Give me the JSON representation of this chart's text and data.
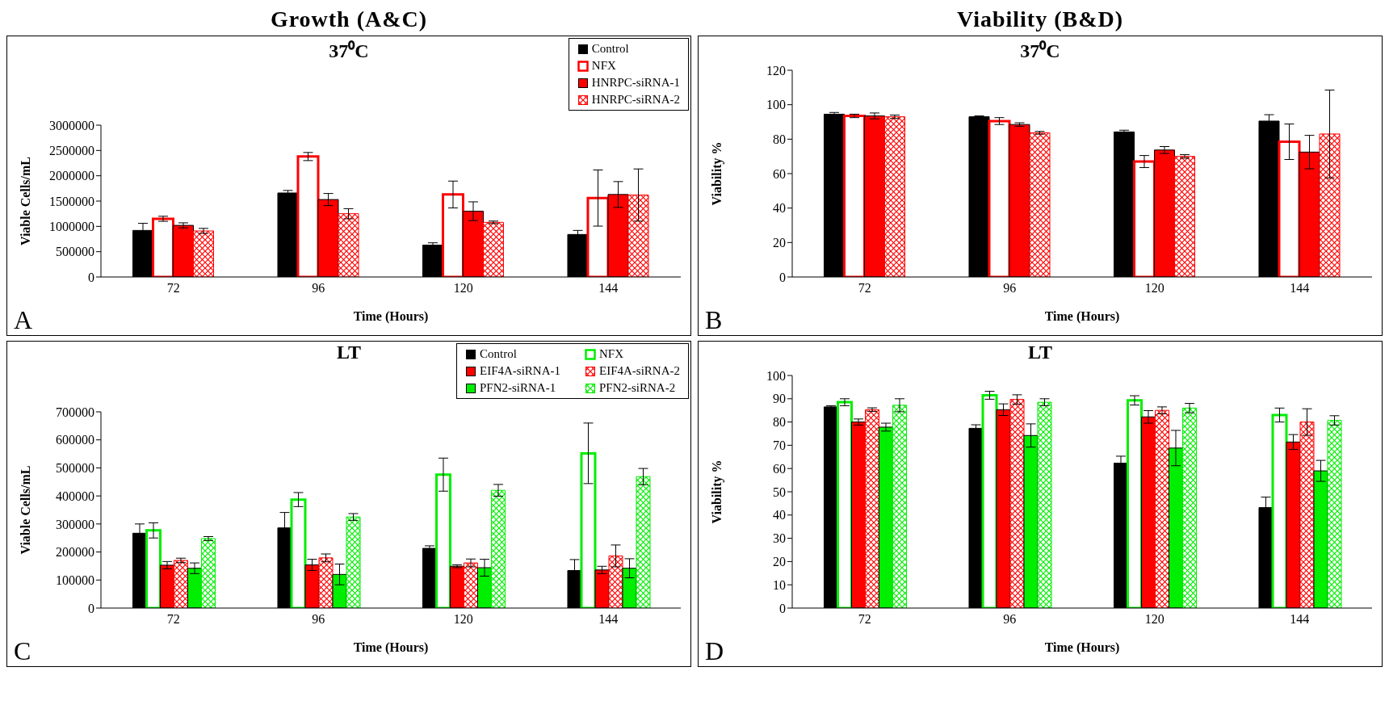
{
  "chart_data": [
    {
      "type": "bar",
      "title": "Growth (A&C)",
      "subtitle": "37⁰C",
      "xlabel": "Time (Hours)",
      "ylabel": "Viable Cells/mL",
      "categories": [
        "72",
        "96",
        "120",
        "144"
      ],
      "ylim": [
        0,
        3000000
      ],
      "yticks": [
        0,
        500000,
        1000000,
        1500000,
        2000000,
        2500000,
        3000000
      ],
      "legend": "top right",
      "annotations": [
        "A"
      ],
      "series": [
        {
          "name": "Control",
          "color": "#000000",
          "values": [
            920000,
            1660000,
            630000,
            840000
          ],
          "errors": [
            140000,
            50000,
            45000,
            80000
          ]
        },
        {
          "name": "NFX",
          "color": "#ff0000",
          "values": [
            1150000,
            2380000,
            1630000,
            1560000
          ],
          "errors": [
            50000,
            80000,
            265000,
            555000
          ]
        },
        {
          "name": "HNRPC-siRNA-1",
          "color": "#ff0000",
          "values": [
            1020000,
            1530000,
            1300000,
            1630000
          ],
          "errors": [
            50000,
            120000,
            185000,
            255000
          ]
        },
        {
          "name": "HNRPC-siRNA-2",
          "color": "#ff0000",
          "values": [
            910000,
            1250000,
            1080000,
            1620000
          ],
          "errors": [
            50000,
            100000,
            25000,
            515000
          ]
        }
      ]
    },
    {
      "type": "bar",
      "title": "Viability (B&D)",
      "subtitle": "37⁰C",
      "xlabel": "Time (Hours)",
      "ylabel": "Viability %",
      "categories": [
        "72",
        "96",
        "120",
        "144"
      ],
      "ylim": [
        0,
        120
      ],
      "yticks": [
        0,
        20,
        40,
        60,
        80,
        100,
        120
      ],
      "annotations": [
        "B"
      ],
      "series": [
        {
          "color": "#000000",
          "values": [
            94.5,
            93,
            84.2,
            90.5
          ],
          "errors": [
            1,
            0.5,
            1,
            3.7
          ]
        },
        {
          "color": "#ff0000",
          "values": [
            93.5,
            90.5,
            67,
            78.5
          ],
          "errors": [
            1,
            2,
            3.5,
            10.3
          ]
        },
        {
          "color": "#ff0000",
          "values": [
            93.5,
            88.5,
            73.7,
            72.5
          ],
          "errors": [
            1.7,
            1,
            2,
            9.7
          ]
        },
        {
          "color": "#ff0000",
          "values": [
            93,
            83.7,
            70,
            83
          ],
          "errors": [
            1,
            0.8,
            1,
            25.5
          ]
        }
      ]
    },
    {
      "type": "bar",
      "subtitle": "LT",
      "xlabel": "Time (Hours)",
      "ylabel": "Viable Cells/mL",
      "categories": [
        "72",
        "96",
        "120",
        "144"
      ],
      "ylim": [
        0,
        700000
      ],
      "yticks": [
        0,
        100000,
        200000,
        300000,
        400000,
        500000,
        600000,
        700000
      ],
      "legend": "top right",
      "annotations": [
        "C"
      ],
      "series": [
        {
          "name": "Control",
          "color": "#000000",
          "values": [
            267000,
            286000,
            213000,
            134000
          ],
          "errors": [
            33000,
            55000,
            9000,
            39000
          ]
        },
        {
          "name": "NFX",
          "color": "#00ee00",
          "values": [
            277000,
            387000,
            476000,
            552000
          ],
          "errors": [
            27000,
            25000,
            59000,
            108000
          ]
        },
        {
          "name": "EIF4A-siRNA-1",
          "color": "#ff0000",
          "values": [
            153000,
            154000,
            149000,
            136000
          ],
          "errors": [
            13000,
            20000,
            5000,
            13000
          ]
        },
        {
          "name": "EIF4A-siRNA-2",
          "color": "#ff0000",
          "values": [
            170000,
            179000,
            161000,
            186000
          ],
          "errors": [
            8000,
            14000,
            14000,
            39000
          ]
        },
        {
          "name": "PFN2-siRNA-1",
          "color": "#00ee00",
          "values": [
            142000,
            120000,
            144000,
            142000
          ],
          "errors": [
            19000,
            37000,
            30000,
            34000
          ]
        },
        {
          "name": "PFN2-siRNA-2",
          "color": "#00ee00",
          "values": [
            248000,
            325000,
            420000,
            469000
          ],
          "errors": [
            7000,
            12000,
            21000,
            29000
          ]
        }
      ]
    },
    {
      "type": "bar",
      "subtitle": "LT",
      "xlabel": "Time (Hours)",
      "ylabel": "Viability %",
      "categories": [
        "72",
        "96",
        "120",
        "144"
      ],
      "ylim": [
        0,
        100
      ],
      "yticks": [
        0,
        10,
        20,
        30,
        40,
        50,
        60,
        70,
        80,
        90,
        100
      ],
      "annotations": [
        "D"
      ],
      "series": [
        {
          "color": "#000000",
          "values": [
            86.5,
            77.3,
            62.3,
            43.2
          ],
          "errors": [
            0.5,
            1.5,
            3,
            4.5
          ]
        },
        {
          "color": "#00ee00",
          "values": [
            88.5,
            91.5,
            89.3,
            83
          ],
          "errors": [
            1.5,
            1.7,
            2,
            3
          ]
        },
        {
          "color": "#ff0000",
          "values": [
            80,
            85.3,
            82.2,
            71.4
          ],
          "errors": [
            1.3,
            2.5,
            2.7,
            3.2
          ]
        },
        {
          "color": "#ff0000",
          "values": [
            85.3,
            89.7,
            85,
            80
          ],
          "errors": [
            0.8,
            2,
            1.5,
            5.7
          ]
        },
        {
          "color": "#00ee00",
          "values": [
            77.8,
            74.2,
            68.8,
            59
          ],
          "errors": [
            1.7,
            5,
            7.6,
            4.5
          ]
        },
        {
          "color": "#00ee00",
          "values": [
            87.2,
            88.5,
            86,
            80.7
          ],
          "errors": [
            2.8,
            1.5,
            2,
            2
          ]
        }
      ]
    }
  ]
}
